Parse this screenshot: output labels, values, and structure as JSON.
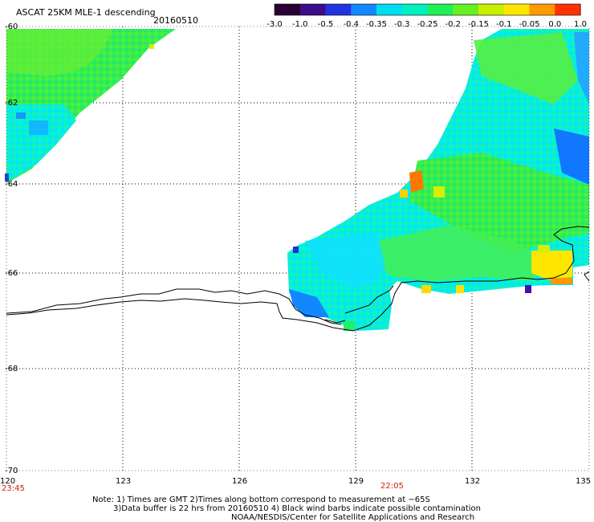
{
  "header": {
    "title": "ASCAT 25KM MLE-1 descending",
    "date": "20160510"
  },
  "colorbar": {
    "stops": [
      "#2a0033",
      "#3a0d8a",
      "#2233dd",
      "#1188ff",
      "#00ddee",
      "#00f0c0",
      "#22ee55",
      "#66f022",
      "#c8ee00",
      "#ffe600",
      "#ff9900",
      "#ff3300"
    ],
    "labels": [
      "-3.0",
      "-1.0",
      "-0.5",
      "-0.4",
      "-0.35",
      "-0.3",
      "-0.25",
      "-0.2",
      "-0.15",
      "-0.1",
      "-0.05",
      "0.0",
      "1.0"
    ]
  },
  "axes": {
    "lat_labels": [
      "-60",
      "-62",
      "-64",
      "-66",
      "-68",
      "-70"
    ],
    "lon_labels": [
      "120",
      "123",
      "126",
      "129",
      "132",
      "135"
    ]
  },
  "times": {
    "left": "23:45",
    "mid": "22:05",
    "color": "#cc2200"
  },
  "notes": {
    "line1": "Note: 1) Times are GMT 2)Times along bottom correspond to measurement at −65S",
    "line2": "3)Data buffer is 22 hrs from 20160510 4) Black wind barbs indicate possible contamination",
    "line3": "NOAA/NESDIS/Center for Satellite Applications and Research"
  }
}
